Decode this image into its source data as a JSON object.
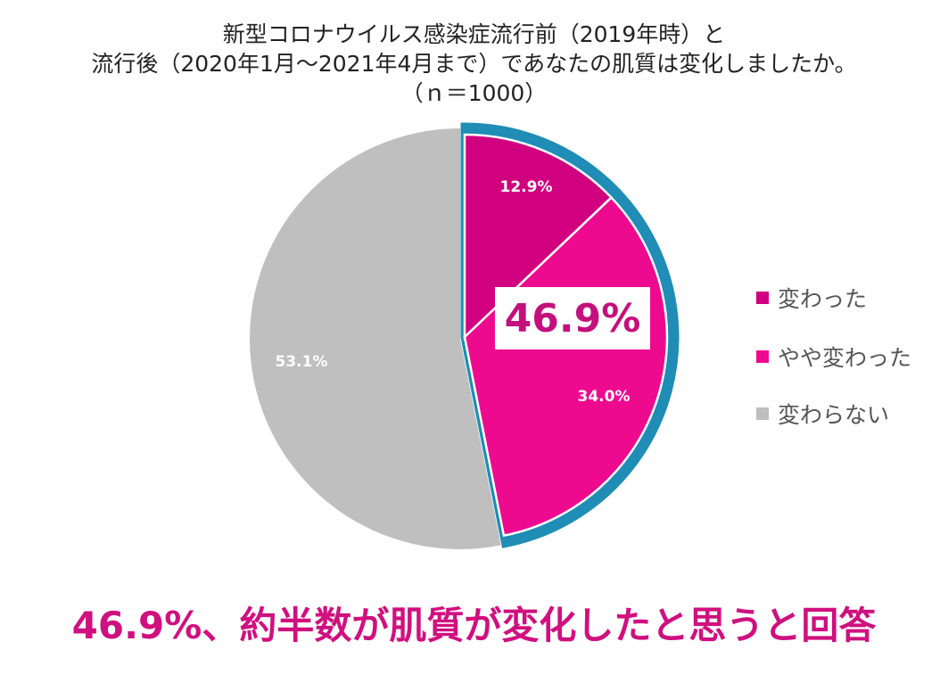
{
  "title_lines": [
    "新型コロナウイルス感染症流行前（2019年時）と",
    "流行後（2020年1月～2021年4月まで）であなたの肌質は変化しましたか。",
    "（ｎ＝1000）"
  ],
  "chart_data": {
    "type": "pie",
    "title": "新型コロナウイルス感染症流行前（2019年時）と流行後（2020年1月～2021年4月まで）であなたの肌質は変化しましたか。（ｎ＝1000）",
    "categories": [
      "変わった",
      "やや変わった",
      "変わらない"
    ],
    "values": [
      12.9,
      34.0,
      53.1
    ],
    "labels": [
      "12.9%",
      "34.0%",
      "53.1%"
    ],
    "colors": [
      "#D0007F",
      "#EE0A8F",
      "#BFBFBF"
    ],
    "highlight_color": "#1F8DB5",
    "highlight_label": "46.9%",
    "legend_position": "right"
  },
  "headline": "46.9%、約半数が肌質が変化したと思うと回答"
}
